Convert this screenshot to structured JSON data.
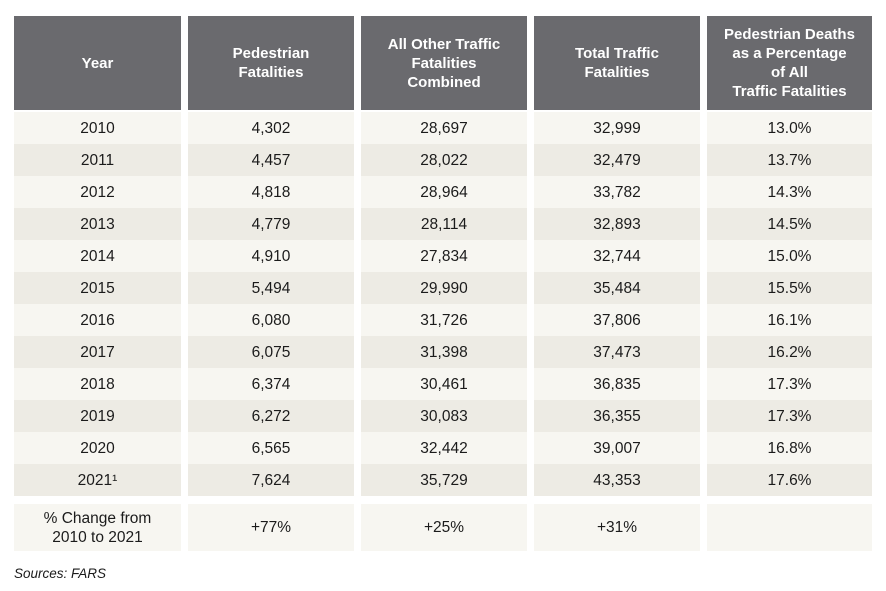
{
  "colors": {
    "page_bg": "#ffffff",
    "header_bg": "#6a6a6e",
    "header_text": "#ffffff",
    "row_light": "#f7f6f1",
    "row_beige": "#edebe4",
    "text": "#1b1b1b"
  },
  "chart_data": {
    "type": "table",
    "header_display": [
      "Year",
      "Pedestrian\nFatalities",
      "All Other Traffic\nFatalities\nCombined",
      "Total Traffic\nFatalities",
      "Pedestrian Deaths\nas a Percentage\nof All\nTraffic Fatalities"
    ],
    "rows": [
      [
        "2010",
        "4,302",
        "28,697",
        "32,999",
        "13.0%"
      ],
      [
        "2011",
        "4,457",
        "28,022",
        "32,479",
        "13.7%"
      ],
      [
        "2012",
        "4,818",
        "28,964",
        "33,782",
        "14.3%"
      ],
      [
        "2013",
        "4,779",
        "28,114",
        "32,893",
        "14.5%"
      ],
      [
        "2014",
        "4,910",
        "27,834",
        "32,744",
        "15.0%"
      ],
      [
        "2015",
        "5,494",
        "29,990",
        "35,484",
        "15.5%"
      ],
      [
        "2016",
        "6,080",
        "31,726",
        "37,806",
        "16.1%"
      ],
      [
        "2017",
        "6,075",
        "31,398",
        "37,473",
        "16.2%"
      ],
      [
        "2018",
        "6,374",
        "30,461",
        "36,835",
        "17.3%"
      ],
      [
        "2019",
        "6,272",
        "30,083",
        "36,355",
        "17.3%"
      ],
      [
        "2020",
        "6,565",
        "32,442",
        "39,007",
        "16.8%"
      ],
      [
        "2021¹",
        "7,624",
        "35,729",
        "43,353",
        "17.6%"
      ]
    ],
    "summary_row": [
      "% Change from\n2010 to 2021",
      "+77%",
      "+25%",
      "+31%",
      ""
    ],
    "source_note": "Sources: FARS"
  }
}
